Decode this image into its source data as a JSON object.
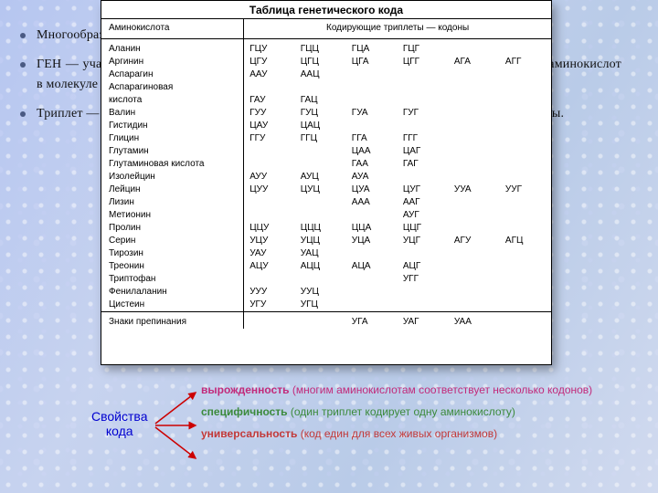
{
  "bullets": [
    "Многообразие белков определяется последовательностью аминокислот.",
    "ГЕН — участок молекулы ДНК, в котором заключена информация о последовательности аминокислот в молекуле белка.",
    "Триплет — сочетание трёх нуклеотидов — кодон. Он специфичен для каждой аминокислоты."
  ],
  "table": {
    "title": "Таблица генетического кода",
    "col_aa": "Аминокислота",
    "col_codons": "Кодирующие триплеты — кодоны",
    "rows": [
      {
        "aa": "Аланин",
        "c": [
          "ГЦУ",
          "ГЦЦ",
          "ГЦА",
          "ГЦГ",
          "",
          ""
        ]
      },
      {
        "aa": "Аргинин",
        "c": [
          "ЦГУ",
          "ЦГЦ",
          "ЦГА",
          "ЦГГ",
          "АГА",
          "АГГ"
        ]
      },
      {
        "aa": "Аспарагин",
        "c": [
          "ААУ",
          "ААЦ",
          "",
          "",
          "",
          ""
        ]
      },
      {
        "aa": "Аспарагиновая",
        "c": [
          "",
          "",
          "",
          "",
          "",
          ""
        ]
      },
      {
        "aa": "кислота",
        "c": [
          "ГАУ",
          "ГАЦ",
          "",
          "",
          "",
          ""
        ]
      },
      {
        "aa": "Валин",
        "c": [
          "ГУУ",
          "ГУЦ",
          "ГУА",
          "ГУГ",
          "",
          ""
        ]
      },
      {
        "aa": "Гистидин",
        "c": [
          "ЦАУ",
          "ЦАЦ",
          "",
          "",
          "",
          ""
        ]
      },
      {
        "aa": "Глицин",
        "c": [
          "ГГУ",
          "ГГЦ",
          "ГГА",
          "ГГГ",
          "",
          ""
        ]
      },
      {
        "aa": "Глутамин",
        "c": [
          "",
          "",
          "ЦАА",
          "ЦАГ",
          "",
          ""
        ]
      },
      {
        "aa": "Глутаминовая кислота",
        "c": [
          "",
          "",
          "ГАА",
          "ГАГ",
          "",
          ""
        ]
      },
      {
        "aa": "Изолейцин",
        "c": [
          "АУУ",
          "АУЦ",
          "АУА",
          "",
          "",
          ""
        ]
      },
      {
        "aa": "Лейцин",
        "c": [
          "ЦУУ",
          "ЦУЦ",
          "ЦУА",
          "ЦУГ",
          "УУА",
          "УУГ"
        ]
      },
      {
        "aa": "Лизин",
        "c": [
          "",
          "",
          "ААА",
          "ААГ",
          "",
          ""
        ]
      },
      {
        "aa": "Метионин",
        "c": [
          "",
          "",
          "",
          "АУГ",
          "",
          ""
        ]
      },
      {
        "aa": "Пролин",
        "c": [
          "ЦЦУ",
          "ЦЦЦ",
          "ЦЦА",
          "ЦЦГ",
          "",
          ""
        ]
      },
      {
        "aa": "Серин",
        "c": [
          "УЦУ",
          "УЦЦ",
          "УЦА",
          "УЦГ",
          "АГУ",
          "АГЦ"
        ]
      },
      {
        "aa": "Тирозин",
        "c": [
          "УАУ",
          "УАЦ",
          "",
          "",
          "",
          ""
        ]
      },
      {
        "aa": "Треонин",
        "c": [
          "АЦУ",
          "АЦЦ",
          "АЦА",
          "АЦГ",
          "",
          ""
        ]
      },
      {
        "aa": "Триптофан",
        "c": [
          "",
          "",
          "",
          "УГГ",
          "",
          ""
        ]
      },
      {
        "aa": "Фенилаланин",
        "c": [
          "УУУ",
          "УУЦ",
          "",
          "",
          "",
          ""
        ]
      },
      {
        "aa": "Цистеин",
        "c": [
          "УГУ",
          "УГЦ",
          "",
          "",
          "",
          ""
        ]
      }
    ],
    "stop_label": "Знаки препинания",
    "stop_codons": [
      "",
      "",
      "УГА",
      "УАГ",
      "УАА",
      ""
    ]
  },
  "props": {
    "label": "Свойства\nкода",
    "items": [
      {
        "term": "вырожденность",
        "rest": " (многим аминокислотам соответствует несколько кодонов)",
        "color": "#c22a7a"
      },
      {
        "term": "специфичность",
        "rest": " (один триплет кодирует одну аминокислоту)",
        "color": "#3b8a3b"
      },
      {
        "term": "универсальность",
        "rest": " (код един для всех живых организмов)",
        "color": "#c23838"
      }
    ],
    "arrow_color": "#cc0000"
  }
}
